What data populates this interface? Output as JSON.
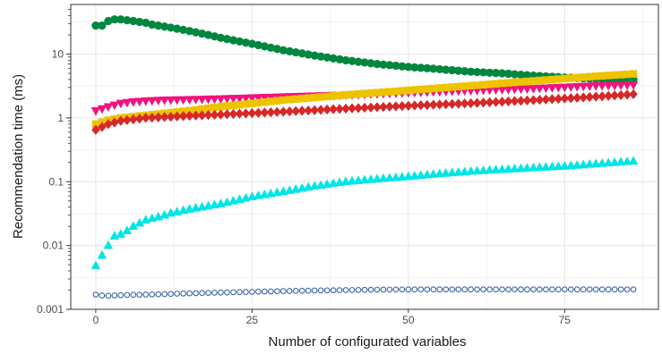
{
  "chart_data": {
    "type": "scatter",
    "title": "",
    "xlabel": "Number of configurated variables",
    "ylabel": "Recommendation time (ms)",
    "xlim": [
      -4,
      90
    ],
    "ylim": [
      0.001,
      60
    ],
    "y_scale": "log",
    "grid": true,
    "legend": "none",
    "x_ticks": [
      0,
      25,
      50,
      75
    ],
    "x_tick_labels": [
      "0",
      "25",
      "50",
      "75"
    ],
    "y_ticks": [
      0.001,
      0.01,
      0.1,
      1,
      10
    ],
    "y_tick_labels": [
      "0.001",
      "0.01",
      "0.1",
      "1",
      "10"
    ],
    "series": [
      {
        "marker": "circle",
        "color": "#00873E",
        "x": [
          0,
          1,
          2,
          3,
          4,
          5,
          6,
          7,
          8,
          9,
          10,
          12,
          14,
          16,
          18,
          20,
          25,
          30,
          35,
          40,
          45,
          50,
          55,
          60,
          65,
          70,
          75,
          80,
          86
        ],
        "y": [
          28,
          28,
          33,
          35,
          35,
          34,
          33,
          32,
          31,
          29,
          28,
          26,
          24,
          22,
          20,
          18,
          14.5,
          11.5,
          9.5,
          8,
          7,
          6.3,
          5.8,
          5.3,
          5,
          4.6,
          4.3,
          4.1,
          4
        ]
      },
      {
        "marker": "triangle-down",
        "color": "#F2137F",
        "x": [
          0,
          2,
          4,
          6,
          8,
          10,
          15,
          20,
          30,
          40,
          50,
          60,
          70,
          80,
          86
        ],
        "y": [
          1.3,
          1.5,
          1.7,
          1.8,
          1.85,
          1.9,
          1.95,
          2.0,
          2.15,
          2.3,
          2.5,
          2.7,
          2.9,
          3.2,
          3.3
        ]
      },
      {
        "marker": "square",
        "color": "#EEC300",
        "x": [
          0,
          2,
          4,
          6,
          8,
          10,
          15,
          20,
          30,
          40,
          50,
          60,
          70,
          80,
          86
        ],
        "y": [
          0.8,
          0.92,
          1.0,
          1.05,
          1.1,
          1.15,
          1.3,
          1.5,
          1.9,
          2.3,
          2.7,
          3.2,
          3.8,
          4.5,
          4.9
        ]
      },
      {
        "marker": "diamond",
        "color": "#D62828",
        "x": [
          0,
          2,
          4,
          6,
          8,
          10,
          15,
          20,
          30,
          40,
          50,
          60,
          70,
          80,
          86
        ],
        "y": [
          0.65,
          0.8,
          0.9,
          0.95,
          1.0,
          1.02,
          1.08,
          1.13,
          1.25,
          1.4,
          1.55,
          1.7,
          1.9,
          2.15,
          2.35
        ]
      },
      {
        "marker": "triangle-up",
        "color": "#00E5E5",
        "x": [
          0,
          1,
          2,
          3,
          4,
          5,
          6,
          8,
          10,
          12,
          15,
          20,
          25,
          30,
          35,
          40,
          45,
          50,
          55,
          60,
          65,
          70,
          75,
          80,
          86
        ],
        "y": [
          0.0048,
          0.007,
          0.01,
          0.014,
          0.015,
          0.017,
          0.02,
          0.025,
          0.028,
          0.032,
          0.037,
          0.045,
          0.058,
          0.07,
          0.085,
          0.1,
          0.11,
          0.12,
          0.133,
          0.145,
          0.155,
          0.165,
          0.175,
          0.19,
          0.21
        ]
      },
      {
        "marker": "circle-open",
        "color": "#3A66A8",
        "x": [
          0,
          1,
          2,
          3,
          5,
          10,
          15,
          20,
          25,
          30,
          35,
          40,
          45,
          50,
          55,
          60,
          65,
          70,
          75,
          80,
          86
        ],
        "y": [
          0.0017,
          0.00165,
          0.00163,
          0.00165,
          0.00168,
          0.00172,
          0.00178,
          0.00183,
          0.00188,
          0.00193,
          0.00197,
          0.002,
          0.00203,
          0.00205,
          0.00205,
          0.00205,
          0.00205,
          0.00205,
          0.00205,
          0.00205,
          0.00205
        ]
      }
    ]
  }
}
